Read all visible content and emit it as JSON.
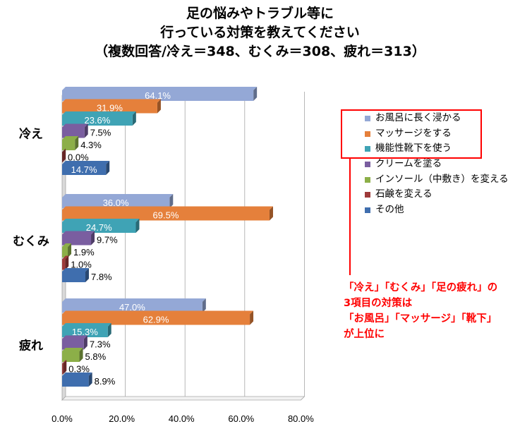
{
  "title": {
    "line1": "足の悩みやトラブル等に",
    "line2": "行っている対策を教えてください",
    "line3": "（複数回答/冷え＝348、むくみ＝308、疲れ＝313）"
  },
  "chart_data": {
    "type": "bar",
    "orientation": "horizontal",
    "categories": [
      "冷え",
      "むくみ",
      "疲れ"
    ],
    "series": [
      {
        "name": "お風呂に長く浸かる",
        "color": "#94a8d6",
        "values": [
          64.1,
          36.0,
          47.0
        ]
      },
      {
        "name": "マッサージをする",
        "color": "#e5803b",
        "values": [
          31.9,
          69.5,
          62.9
        ]
      },
      {
        "name": "機能性靴下を使う",
        "color": "#3fa3b5",
        "values": [
          23.6,
          24.7,
          15.3
        ]
      },
      {
        "name": "クリームを塗る",
        "color": "#7a5ea0",
        "values": [
          7.5,
          9.7,
          7.3
        ]
      },
      {
        "name": "インソール（中敷き）を変える",
        "color": "#8caf48",
        "values": [
          4.3,
          1.9,
          5.8
        ]
      },
      {
        "name": "石鹸を変える",
        "color": "#9e3a3a",
        "values": [
          0.0,
          1.0,
          0.3
        ]
      },
      {
        "name": "その他",
        "color": "#3f6eae",
        "values": [
          14.7,
          7.8,
          8.9
        ]
      }
    ],
    "value_labels": [
      [
        "64.1%",
        "31.9%",
        "23.6%",
        "7.5%",
        "4.3%",
        "0.0%",
        "14.7%"
      ],
      [
        "36.0%",
        "69.5%",
        "24.7%",
        "9.7%",
        "1.9%",
        "1.0%",
        "7.8%"
      ],
      [
        "47.0%",
        "62.9%",
        "15.3%",
        "7.3%",
        "5.8%",
        "0.3%",
        "8.9%"
      ]
    ],
    "xlim": [
      0,
      80
    ],
    "xticks": [
      "0.0%",
      "20.0%",
      "40.0%",
      "60.0%",
      "80.0%"
    ],
    "grid": true,
    "legend_position": "right"
  },
  "callout": {
    "line1": "「冷え」「むくみ」「足の疲れ」の",
    "line2": "3項目の対策は",
    "line3": "「お風呂」「マッサージ」「靴下」",
    "line4": "が上位に"
  }
}
